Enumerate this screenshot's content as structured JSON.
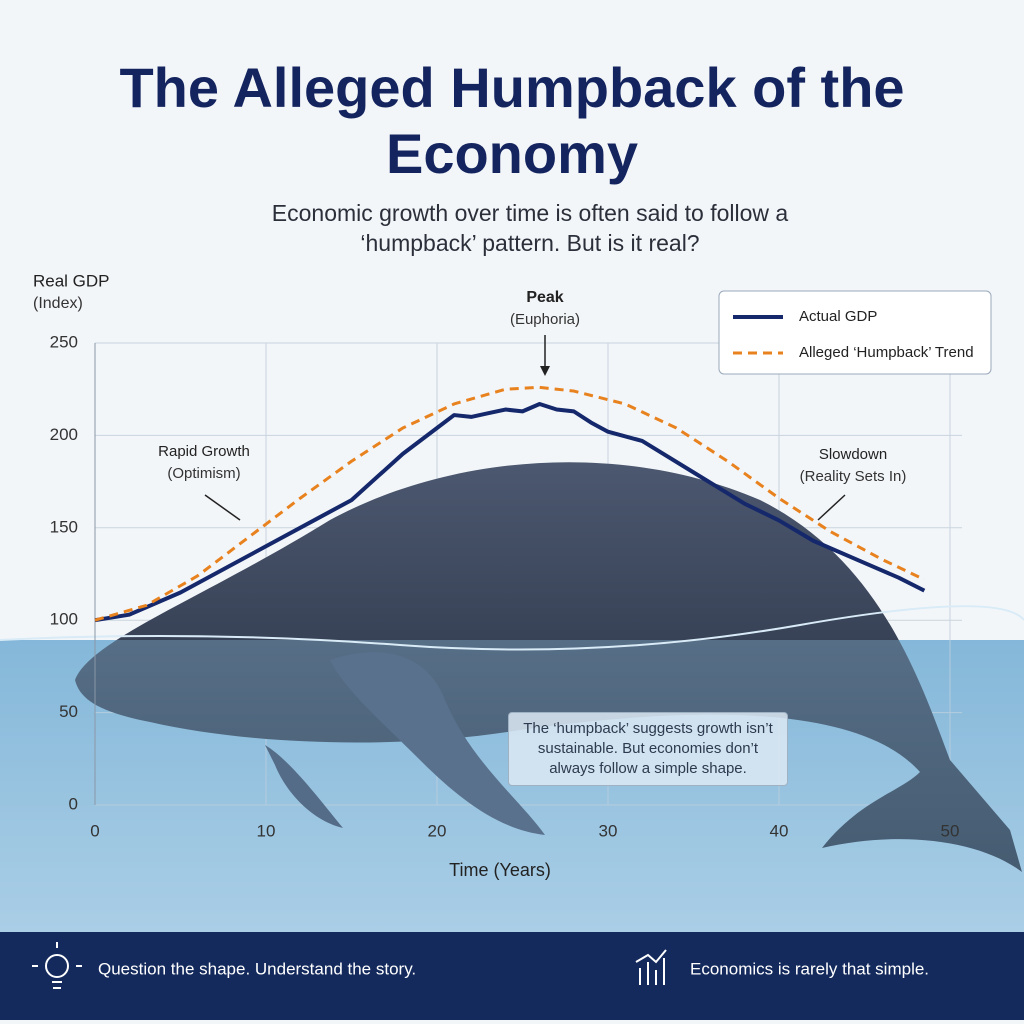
{
  "chart_data": {
    "type": "line",
    "title": "The Alleged Humpback of the Economy",
    "subtitle": "Economic growth over time is often said to follow a ‘humpback’ pattern. But is it real?",
    "y_label": "Real GDP",
    "y_label_unit": "(Index)",
    "x_label": "Time (Years)",
    "xlim": [
      0,
      50
    ],
    "xticks": [
      0,
      10,
      20,
      30,
      40,
      50
    ],
    "ylim": [
      0,
      250
    ],
    "yticks": [
      0,
      50,
      100,
      150,
      200,
      250
    ],
    "grid": true,
    "legend_position": "upper right",
    "series": [
      {
        "name": "Actual GDP",
        "color": "#14286b",
        "style": "solid",
        "x": [
          0,
          2,
          5,
          8,
          10,
          13,
          15,
          18,
          20,
          21,
          22,
          23,
          24,
          25,
          26,
          27,
          28,
          29,
          30,
          32,
          35,
          38,
          40,
          42,
          45,
          47,
          48.5
        ],
        "values": [
          100,
          103,
          115,
          130,
          140,
          155,
          165,
          190,
          204,
          211,
          210,
          212,
          214,
          213,
          217,
          214,
          213,
          207,
          202,
          197,
          180,
          163,
          154,
          143,
          131,
          123,
          116
        ]
      },
      {
        "name": "Alleged ‘Humpback’ Trend",
        "color": "#e8821e",
        "style": "dashed",
        "x": [
          0,
          3,
          6,
          9,
          12,
          15,
          18,
          21,
          24,
          26,
          28,
          31,
          34,
          37,
          40,
          43,
          46,
          48.5
        ],
        "values": [
          100,
          108,
          124,
          145,
          166,
          186,
          204,
          217,
          225,
          226,
          224,
          217,
          204,
          186,
          166,
          148,
          133,
          122
        ]
      }
    ],
    "annotations": [
      {
        "label": "Peak",
        "sublabel": "(Euphoria)"
      },
      {
        "label": "Rapid Growth",
        "sublabel": "(Optimism)"
      },
      {
        "label": "Slowdown",
        "sublabel": "(Reality Sets In)"
      }
    ],
    "note": "The ‘humpback’ suggests growth isn’t sustainable. But economies don’t always follow a simple shape."
  },
  "footer": {
    "left": "Question the shape. Understand the story.",
    "right": "Economics is rarely that simple."
  }
}
